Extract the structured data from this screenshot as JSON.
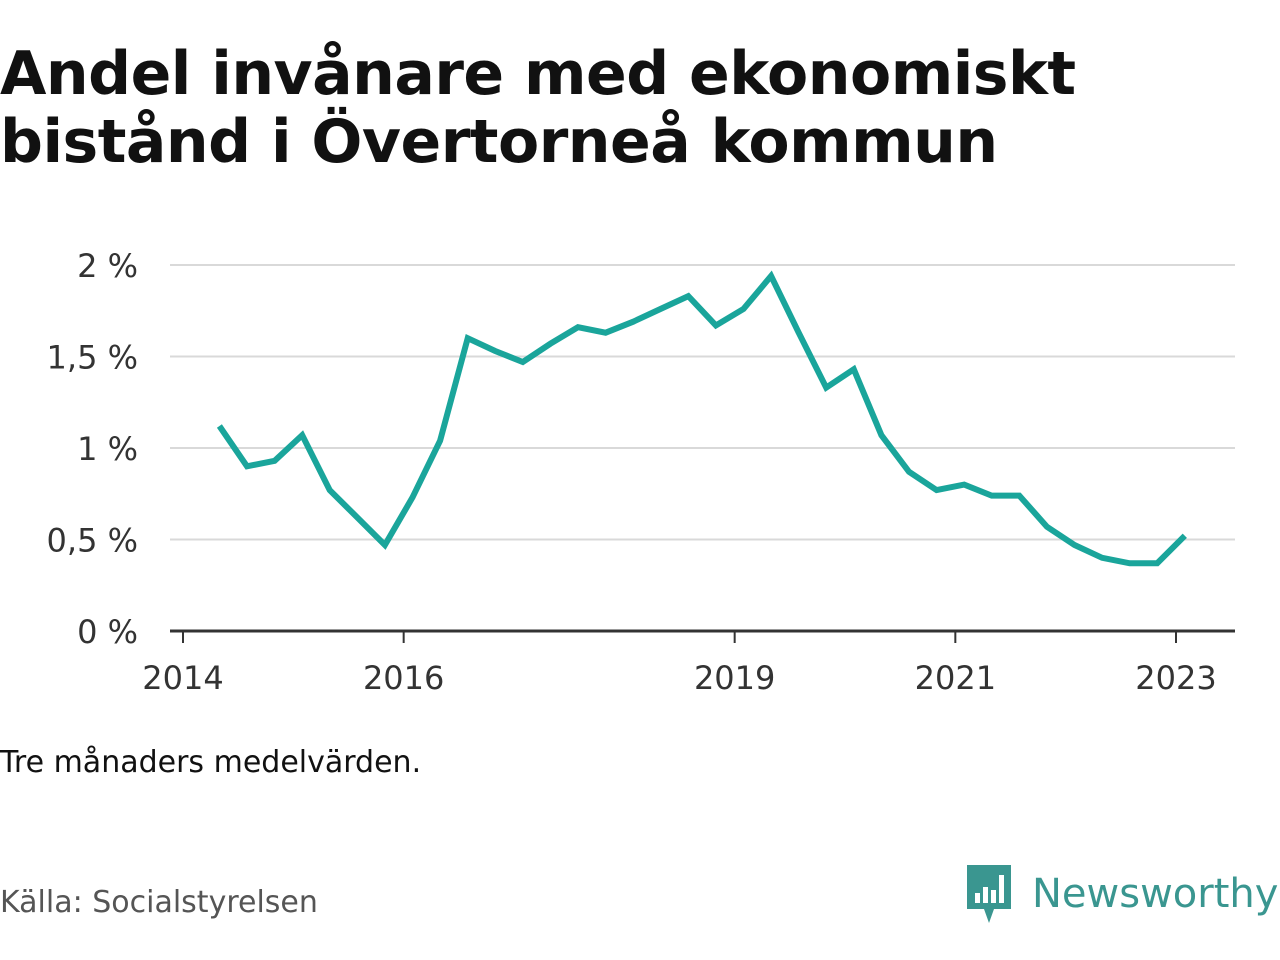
{
  "title_lines": [
    "Andel invånare med ekonomiskt",
    "bistånd i Övertorneå kommun"
  ],
  "note": "Tre månaders medelvärden.",
  "source": "Källa: Socialstyrelsen",
  "brand": {
    "name": "Newsworthy",
    "icon": "newsworthy-logo-icon",
    "color": "#3a9690"
  },
  "chart_data": {
    "type": "line",
    "title": "Andel invånare med ekonomiskt bistånd i Övertorneå kommun",
    "xlabel": "",
    "ylabel": "",
    "ylim": [
      0,
      2
    ],
    "xlim": [
      2014.0,
      2023.5
    ],
    "grid": true,
    "legend": "none",
    "line_color": "#1aa59b",
    "y_ticks": [
      {
        "value": 0,
        "label": "0 %"
      },
      {
        "value": 0.5,
        "label": "0,5 %"
      },
      {
        "value": 1,
        "label": "1 %"
      },
      {
        "value": 1.5,
        "label": "1,5 %"
      },
      {
        "value": 2,
        "label": "2 %"
      }
    ],
    "x_ticks": [
      {
        "value": 2014,
        "label": "2014"
      },
      {
        "value": 2016,
        "label": "2016"
      },
      {
        "value": 2019,
        "label": "2019"
      },
      {
        "value": 2021,
        "label": "2021"
      },
      {
        "value": 2023,
        "label": "2023"
      }
    ],
    "series": [
      {
        "x": [
          2014.33,
          2014.58,
          2014.83,
          2015.08,
          2015.33,
          2015.58,
          2015.83,
          2016.08,
          2016.33,
          2016.58,
          2016.83,
          2017.08,
          2017.33,
          2017.58,
          2017.83,
          2018.08,
          2018.33,
          2018.58,
          2018.83,
          2019.08,
          2019.33,
          2019.58,
          2019.83,
          2020.08,
          2020.33,
          2020.58,
          2020.83,
          2021.08,
          2021.33,
          2021.58,
          2021.83,
          2022.08,
          2022.33,
          2022.58,
          2022.83,
          2023.08
        ],
        "values": [
          1.12,
          0.9,
          0.93,
          1.07,
          0.77,
          0.62,
          0.47,
          0.73,
          1.04,
          1.6,
          1.53,
          1.47,
          1.57,
          1.66,
          1.63,
          1.69,
          1.76,
          1.83,
          1.67,
          1.76,
          1.94,
          1.63,
          1.33,
          1.43,
          1.07,
          0.87,
          0.77,
          0.8,
          0.74,
          0.74,
          0.57,
          0.47,
          0.4,
          0.37,
          0.37,
          0.52
        ]
      }
    ]
  }
}
